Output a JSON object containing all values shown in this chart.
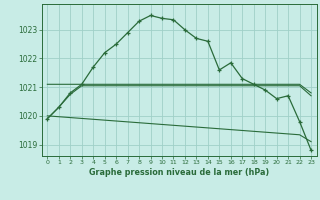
{
  "title": "Graphe pression niveau de la mer (hPa)",
  "bg_color": "#c8ece6",
  "grid_color": "#a0d0c8",
  "line_color": "#2a6b3a",
  "x_labels": [
    "0",
    "1",
    "2",
    "3",
    "4",
    "5",
    "6",
    "7",
    "8",
    "9",
    "10",
    "11",
    "12",
    "13",
    "14",
    "15",
    "16",
    "17",
    "18",
    "19",
    "20",
    "21",
    "22",
    "23"
  ],
  "ylim": [
    1018.6,
    1023.9
  ],
  "yticks": [
    1019,
    1020,
    1021,
    1022,
    1023
  ],
  "series_main": [
    1019.9,
    1020.3,
    1020.8,
    1021.1,
    1021.7,
    1022.2,
    1022.5,
    1022.9,
    1023.3,
    1023.5,
    1023.4,
    1023.35,
    1023.0,
    1022.7,
    1022.6,
    1021.6,
    1021.85,
    1021.3,
    1021.1,
    1020.9,
    1020.6,
    1020.7,
    1019.8,
    1018.8
  ],
  "series_rise": [
    1019.9,
    1020.3,
    1020.75,
    1021.05,
    1021.05,
    1021.05,
    1021.05,
    1021.05,
    1021.05,
    1021.05,
    1021.05,
    1021.05,
    1021.05,
    1021.05,
    1021.05,
    1021.05,
    1021.05,
    1021.05,
    1021.05,
    1021.05,
    1021.05,
    1021.05,
    1021.05,
    1020.7
  ],
  "series_flat": [
    1021.1,
    1021.1,
    1021.1,
    1021.1,
    1021.1,
    1021.1,
    1021.1,
    1021.1,
    1021.1,
    1021.1,
    1021.1,
    1021.1,
    1021.1,
    1021.1,
    1021.1,
    1021.1,
    1021.1,
    1021.1,
    1021.1,
    1021.1,
    1021.1,
    1021.1,
    1021.1,
    1020.8
  ],
  "series_diag": [
    1020.0,
    1019.97,
    1019.94,
    1019.91,
    1019.88,
    1019.85,
    1019.82,
    1019.79,
    1019.76,
    1019.73,
    1019.7,
    1019.67,
    1019.64,
    1019.61,
    1019.58,
    1019.55,
    1019.52,
    1019.49,
    1019.46,
    1019.43,
    1019.4,
    1019.37,
    1019.34,
    1019.1
  ]
}
